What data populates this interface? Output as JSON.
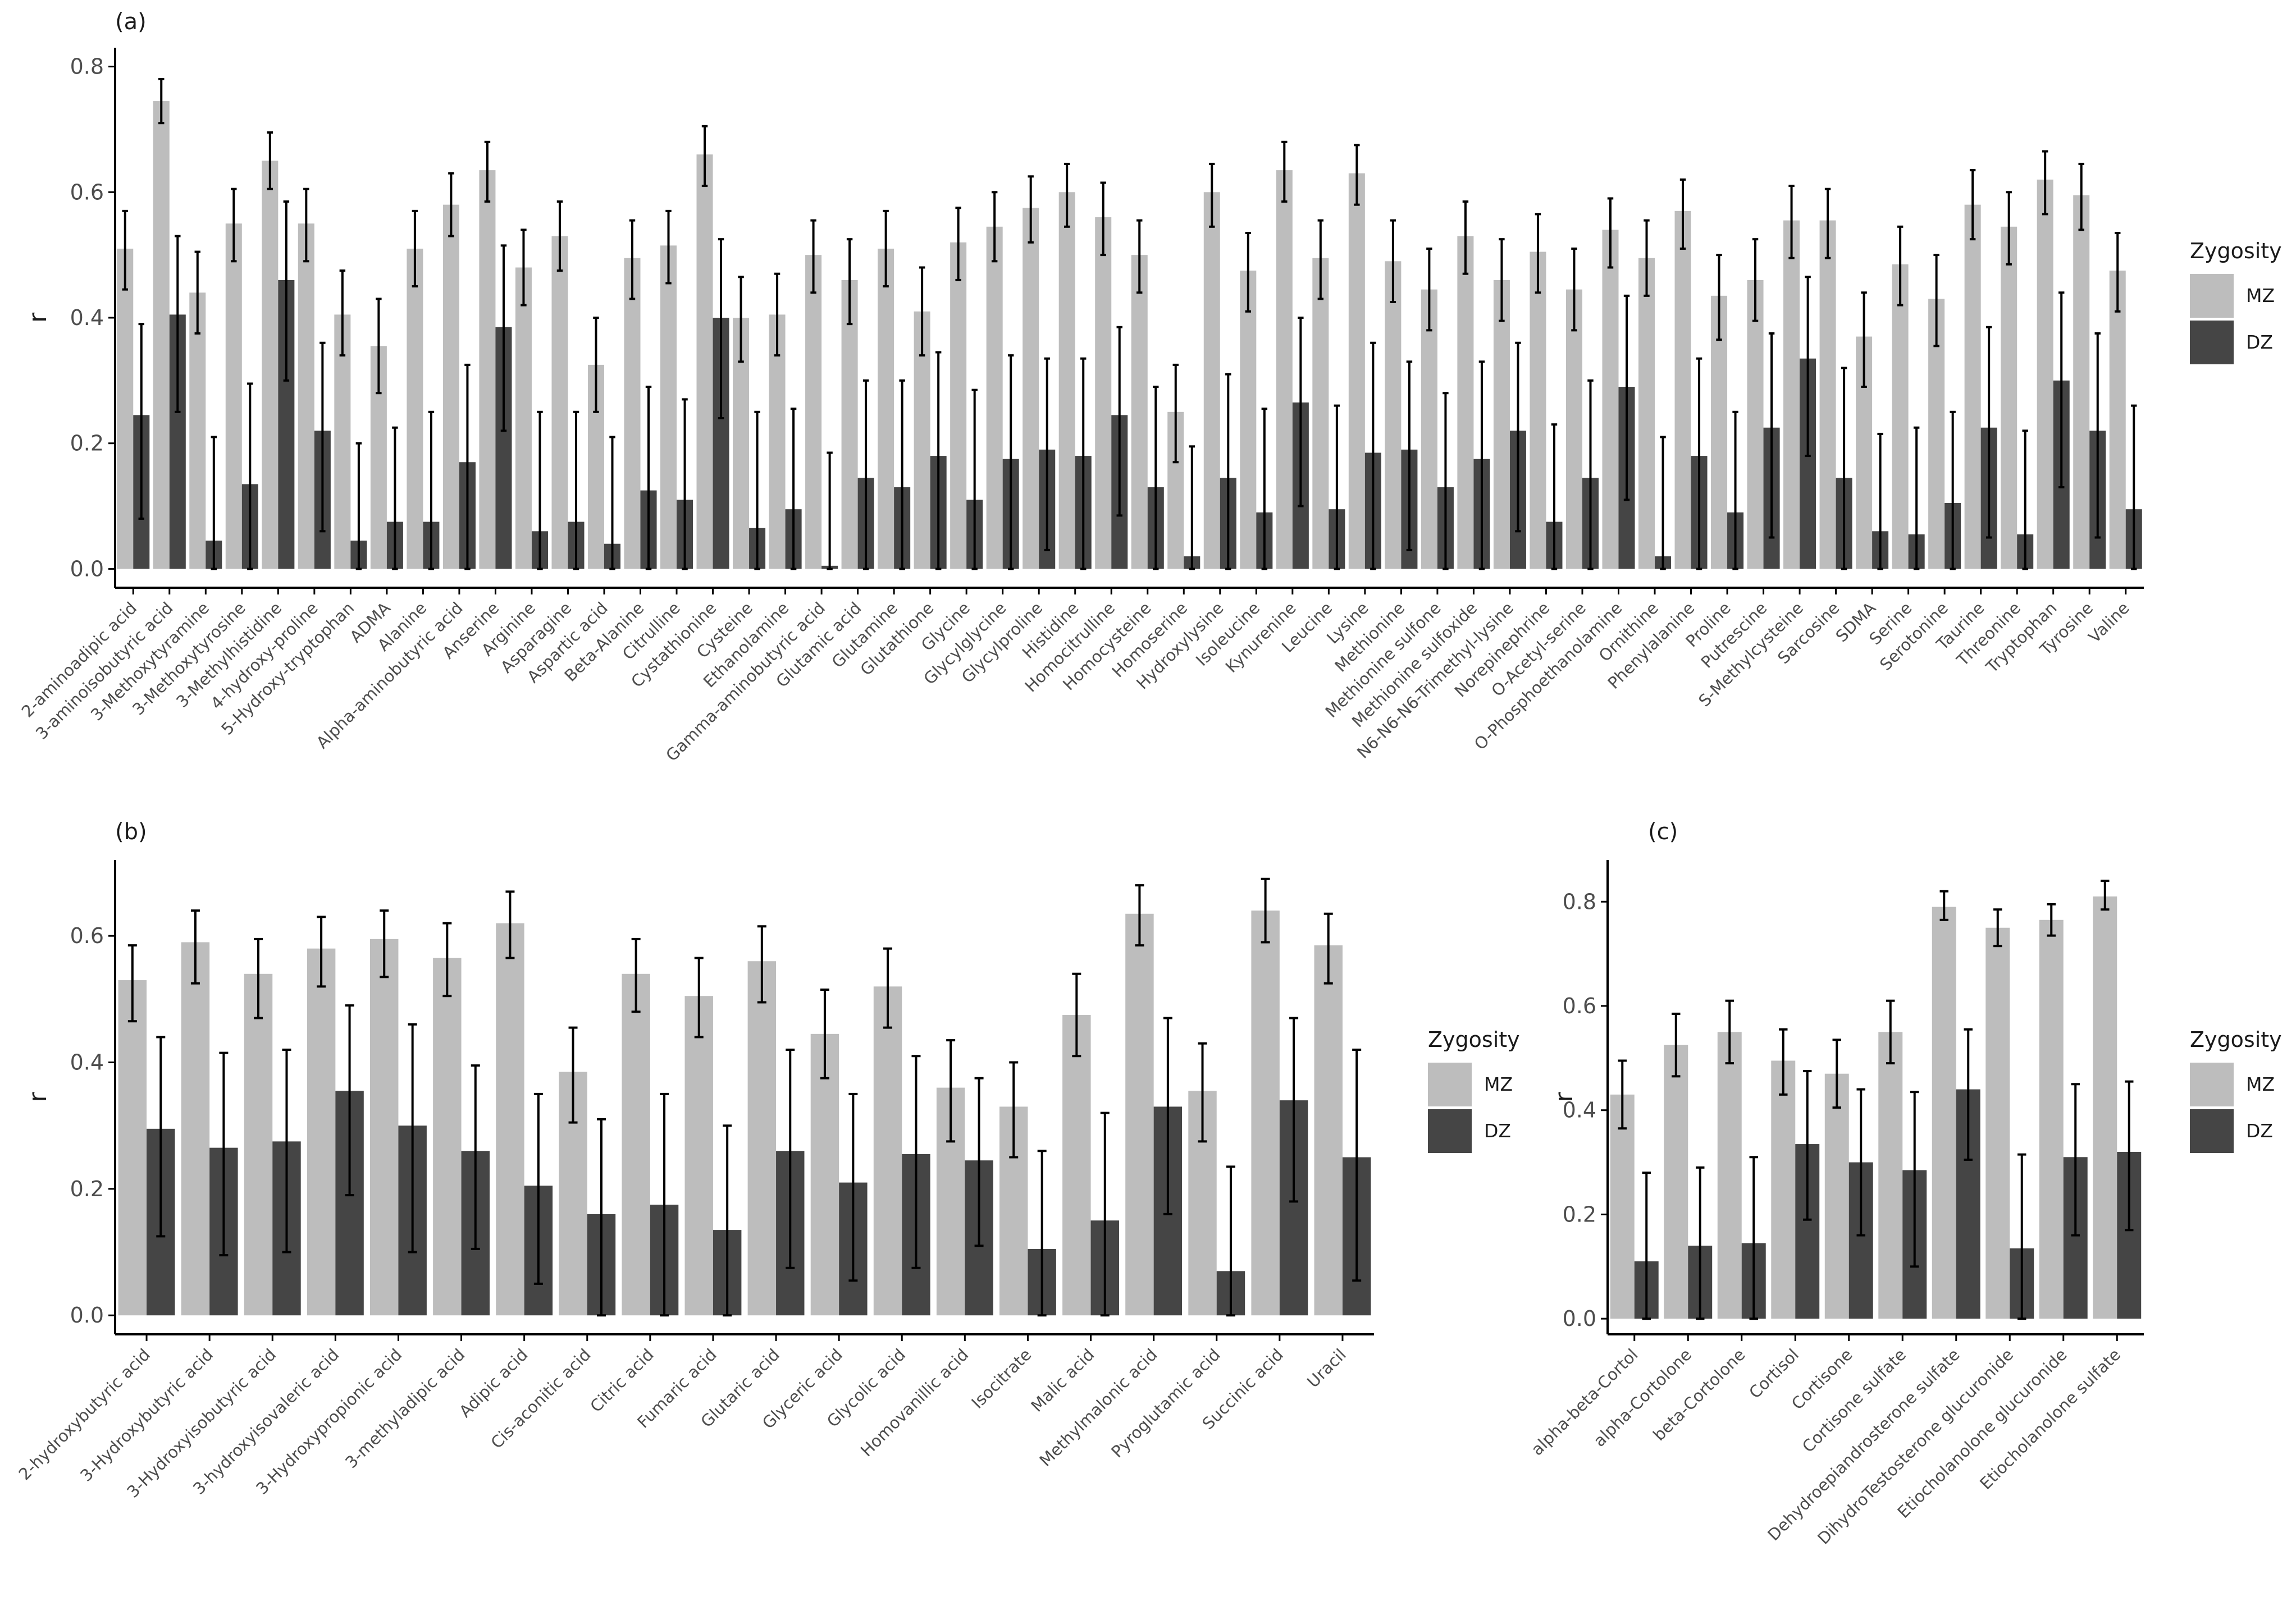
{
  "colors": {
    "MZ": "#bdbdbd",
    "DZ": "#454545",
    "axis": "#000000",
    "error": "#000000"
  },
  "legend": {
    "title": "Zygosity",
    "labels": [
      "MZ",
      "DZ"
    ]
  },
  "chart_data": [
    {
      "panel": "(a)",
      "type": "bar",
      "ylabel": "r",
      "ylim": [
        -0.03,
        0.83
      ],
      "yticks": [
        "0.0",
        "0.2",
        "0.4",
        "0.6",
        "0.8"
      ],
      "categories": [
        "2-aminoadipic acid",
        "3-aminoisobutyric acid",
        "3-Methoxytyramine",
        "3-Methoxytyrosine",
        "3-Methylhistidine",
        "4-hydroxy-proline",
        "5-Hydroxy-tryptophan",
        "ADMA",
        "Alanine",
        "Alpha-aminobutyric acid",
        "Anserine",
        "Arginine",
        "Asparagine",
        "Aspartic acid",
        "Beta-Alanine",
        "Citrulline",
        "Cystathionine",
        "Cysteine",
        "Ethanolamine",
        "Gamma-aminobutyric acid",
        "Glutamic acid",
        "Glutamine",
        "Glutathione",
        "Glycine",
        "Glycylglycine",
        "Glycylproline",
        "Histidine",
        "Homocitrulline",
        "Homocysteine",
        "Homoserine",
        "Hydroxylysine",
        "Isoleucine",
        "Kynurenine",
        "Leucine",
        "Lysine",
        "Methionine",
        "Methionine sulfone",
        "Methionine sulfoxide",
        "N6-N6-N6-Trimethyl-lysine",
        "Norepinephrine",
        "O-Acetyl-serine",
        "O-Phosphoethanolamine",
        "Ornithine",
        "Phenylalanine",
        "Proline",
        "Putrescine",
        "S-Methylcysteine",
        "Sarcosine",
        "SDMA",
        "Serine",
        "Serotonine",
        "Taurine",
        "Threonine",
        "Tryptophan",
        "Tyrosine",
        "Valine"
      ],
      "series": [
        {
          "name": "MZ",
          "values": [
            0.51,
            0.745,
            0.44,
            0.55,
            0.65,
            0.55,
            0.405,
            0.355,
            0.51,
            0.58,
            0.635,
            0.48,
            0.53,
            0.325,
            0.495,
            0.515,
            0.66,
            0.4,
            0.405,
            0.5,
            0.46,
            0.51,
            0.41,
            0.52,
            0.545,
            0.575,
            0.6,
            0.56,
            0.5,
            0.25,
            0.6,
            0.475,
            0.635,
            0.495,
            0.63,
            0.49,
            0.445,
            0.53,
            0.46,
            0.505,
            0.445,
            0.54,
            0.495,
            0.57,
            0.435,
            0.46,
            0.555,
            0.555,
            0.37,
            0.485,
            0.43,
            0.58,
            0.545,
            0.62,
            0.595,
            0.475
          ],
          "lower": [
            0.445,
            0.71,
            0.375,
            0.49,
            0.605,
            0.49,
            0.34,
            0.28,
            0.45,
            0.53,
            0.585,
            0.42,
            0.475,
            0.25,
            0.43,
            0.455,
            0.61,
            0.33,
            0.34,
            0.44,
            0.39,
            0.45,
            0.34,
            0.46,
            0.49,
            0.52,
            0.545,
            0.5,
            0.44,
            0.17,
            0.545,
            0.41,
            0.585,
            0.43,
            0.58,
            0.425,
            0.38,
            0.47,
            0.395,
            0.44,
            0.38,
            0.48,
            0.435,
            0.51,
            0.365,
            0.395,
            0.495,
            0.495,
            0.29,
            0.42,
            0.355,
            0.525,
            0.485,
            0.565,
            0.54,
            0.41
          ],
          "upper": [
            0.57,
            0.78,
            0.505,
            0.605,
            0.695,
            0.605,
            0.475,
            0.43,
            0.57,
            0.63,
            0.68,
            0.54,
            0.585,
            0.4,
            0.555,
            0.57,
            0.705,
            0.465,
            0.47,
            0.555,
            0.525,
            0.57,
            0.48,
            0.575,
            0.6,
            0.625,
            0.645,
            0.615,
            0.555,
            0.325,
            0.645,
            0.535,
            0.68,
            0.555,
            0.675,
            0.555,
            0.51,
            0.585,
            0.525,
            0.565,
            0.51,
            0.59,
            0.555,
            0.62,
            0.5,
            0.525,
            0.61,
            0.605,
            0.44,
            0.545,
            0.5,
            0.635,
            0.6,
            0.665,
            0.645,
            0.535
          ]
        },
        {
          "name": "DZ",
          "values": [
            0.245,
            0.405,
            0.045,
            0.135,
            0.46,
            0.22,
            0.045,
            0.075,
            0.075,
            0.17,
            0.385,
            0.06,
            0.075,
            0.04,
            0.125,
            0.11,
            0.4,
            0.065,
            0.095,
            0.005,
            0.145,
            0.13,
            0.18,
            0.11,
            0.175,
            0.19,
            0.18,
            0.245,
            0.13,
            0.02,
            0.145,
            0.09,
            0.265,
            0.095,
            0.185,
            0.19,
            0.13,
            0.175,
            0.22,
            0.075,
            0.145,
            0.29,
            0.02,
            0.18,
            0.09,
            0.225,
            0.335,
            0.145,
            0.06,
            0.055,
            0.105,
            0.225,
            0.055,
            0.3,
            0.22,
            0.095
          ],
          "lower": [
            0.08,
            0.25,
            0.0,
            0.0,
            0.3,
            0.06,
            0.0,
            0.0,
            0.0,
            0.0,
            0.22,
            0.0,
            0.0,
            0.0,
            0.0,
            0.0,
            0.24,
            0.0,
            0.0,
            0.0,
            0.0,
            0.0,
            0.0,
            0.0,
            0.0,
            0.03,
            0.0,
            0.085,
            0.0,
            0.0,
            0.0,
            0.0,
            0.1,
            0.0,
            0.0,
            0.03,
            0.0,
            0.0,
            0.06,
            0.0,
            0.0,
            0.11,
            0.0,
            0.0,
            0.0,
            0.05,
            0.18,
            0.0,
            0.0,
            0.0,
            0.0,
            0.05,
            0.0,
            0.13,
            0.05,
            0.0
          ],
          "upper": [
            0.39,
            0.53,
            0.21,
            0.295,
            0.585,
            0.36,
            0.2,
            0.225,
            0.25,
            0.325,
            0.515,
            0.25,
            0.25,
            0.21,
            0.29,
            0.27,
            0.525,
            0.25,
            0.255,
            0.185,
            0.3,
            0.3,
            0.345,
            0.285,
            0.34,
            0.335,
            0.335,
            0.385,
            0.29,
            0.195,
            0.31,
            0.255,
            0.4,
            0.26,
            0.36,
            0.33,
            0.28,
            0.33,
            0.36,
            0.23,
            0.3,
            0.435,
            0.21,
            0.335,
            0.25,
            0.375,
            0.465,
            0.32,
            0.215,
            0.225,
            0.25,
            0.385,
            0.22,
            0.44,
            0.375,
            0.26
          ]
        }
      ]
    },
    {
      "panel": "(b)",
      "type": "bar",
      "ylabel": "r",
      "ylim": [
        -0.03,
        0.72
      ],
      "yticks": [
        "0.0",
        "0.2",
        "0.4",
        "0.6"
      ],
      "categories": [
        "2-hydroxybutyric acid",
        "3-Hydroxybutyric acid",
        "3-Hydroxyisobutyric acid",
        "3-hydroxyisovaleric acid",
        "3-Hydroxypropionic acid",
        "3-methyladipic acid",
        "Adipic acid",
        "Cis-aconitic acid",
        "Citric acid",
        "Fumaric acid",
        "Glutaric acid",
        "Glyceric acid",
        "Glycolic acid",
        "Homovanillic acid",
        "Isocitrate",
        "Malic acid",
        "Methylmalonic acid",
        "Pyroglutamic acid",
        "Succinic acid",
        "Uracil"
      ],
      "series": [
        {
          "name": "MZ",
          "values": [
            0.53,
            0.59,
            0.54,
            0.58,
            0.595,
            0.565,
            0.62,
            0.385,
            0.54,
            0.505,
            0.56,
            0.445,
            0.52,
            0.36,
            0.33,
            0.475,
            0.635,
            0.355,
            0.64,
            0.585
          ],
          "lower": [
            0.465,
            0.525,
            0.47,
            0.52,
            0.535,
            0.505,
            0.565,
            0.305,
            0.48,
            0.44,
            0.495,
            0.375,
            0.455,
            0.275,
            0.25,
            0.41,
            0.585,
            0.275,
            0.59,
            0.525
          ],
          "upper": [
            0.585,
            0.64,
            0.595,
            0.63,
            0.64,
            0.62,
            0.67,
            0.455,
            0.595,
            0.565,
            0.615,
            0.515,
            0.58,
            0.435,
            0.4,
            0.54,
            0.68,
            0.43,
            0.69,
            0.635
          ]
        },
        {
          "name": "DZ",
          "values": [
            0.295,
            0.265,
            0.275,
            0.355,
            0.3,
            0.26,
            0.205,
            0.16,
            0.175,
            0.135,
            0.26,
            0.21,
            0.255,
            0.245,
            0.105,
            0.15,
            0.33,
            0.07,
            0.34,
            0.25
          ],
          "lower": [
            0.125,
            0.095,
            0.1,
            0.19,
            0.1,
            0.105,
            0.05,
            0.0,
            0.0,
            0.0,
            0.075,
            0.055,
            0.075,
            0.11,
            0.0,
            0.0,
            0.16,
            0.0,
            0.18,
            0.055
          ],
          "upper": [
            0.44,
            0.415,
            0.42,
            0.49,
            0.46,
            0.395,
            0.35,
            0.31,
            0.35,
            0.3,
            0.42,
            0.35,
            0.41,
            0.375,
            0.26,
            0.32,
            0.47,
            0.235,
            0.47,
            0.42
          ]
        }
      ]
    },
    {
      "panel": "(c)",
      "type": "bar",
      "ylabel": "r",
      "ylim": [
        -0.03,
        0.88
      ],
      "yticks": [
        "0.0",
        "0.2",
        "0.4",
        "0.6",
        "0.8"
      ],
      "categories": [
        "alpha-beta-Cortol",
        "alpha-Cortolone",
        "beta-Cortolone",
        "Cortisol",
        "Cortisone",
        "Cortisone sulfate",
        "Dehydroepiandrosterone sulfate",
        "DihydroTestosterone glucuronide",
        "Etiocholanolone glucuronide",
        "Etiocholanolone sulfate"
      ],
      "series": [
        {
          "name": "MZ",
          "values": [
            0.43,
            0.525,
            0.55,
            0.495,
            0.47,
            0.55,
            0.79,
            0.75,
            0.765,
            0.81
          ],
          "lower": [
            0.365,
            0.465,
            0.49,
            0.43,
            0.405,
            0.49,
            0.765,
            0.715,
            0.735,
            0.785
          ],
          "upper": [
            0.495,
            0.585,
            0.61,
            0.555,
            0.535,
            0.61,
            0.82,
            0.785,
            0.795,
            0.84
          ]
        },
        {
          "name": "DZ",
          "values": [
            0.11,
            0.14,
            0.145,
            0.335,
            0.3,
            0.285,
            0.44,
            0.135,
            0.31,
            0.32
          ],
          "lower": [
            0.0,
            0.0,
            0.0,
            0.19,
            0.16,
            0.1,
            0.305,
            0.0,
            0.16,
            0.17
          ],
          "upper": [
            0.28,
            0.29,
            0.31,
            0.475,
            0.44,
            0.435,
            0.555,
            0.315,
            0.45,
            0.455
          ]
        }
      ]
    }
  ]
}
